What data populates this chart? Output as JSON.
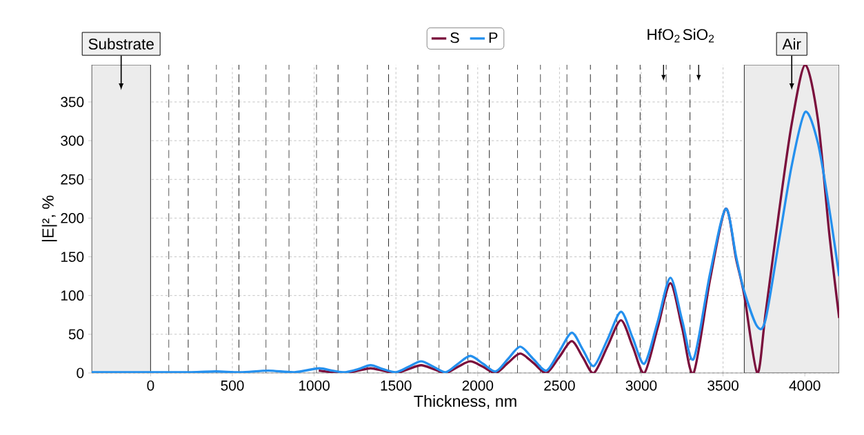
{
  "chart_data": {
    "type": "line",
    "xlabel": "Thickness, nm",
    "ylabel": "|E|², %",
    "x": [
      -360,
      0,
      250,
      400,
      550,
      720,
      880,
      1028,
      1110,
      1190,
      1270,
      1345,
      1420,
      1500,
      1577,
      1654,
      1730,
      1805,
      1880,
      1955,
      2032,
      2110,
      2185,
      2260,
      2340,
      2420,
      2497,
      2575,
      2643,
      2710,
      2793,
      2876,
      2948,
      3019,
      3100,
      3178,
      3250,
      3320,
      3420,
      3516,
      3580,
      3630,
      3709,
      3760,
      3844,
      3920,
      4002,
      4080,
      4150,
      4210
    ],
    "series": [
      {
        "name": "S",
        "color": "#7a0f3c",
        "values": [
          null,
          null,
          null,
          null,
          null,
          null,
          null,
          3,
          1,
          0,
          3,
          6,
          3,
          0,
          5,
          10,
          5,
          0,
          8,
          15,
          8,
          0,
          13,
          25,
          13,
          0,
          20,
          41,
          20,
          0,
          34,
          68,
          34,
          0,
          58,
          116,
          58,
          0,
          120,
          212,
          147,
          100,
          0,
          77,
          211,
          322,
          398,
          327,
          179,
          71
        ]
      },
      {
        "name": "P",
        "color": "#2490ee",
        "values": [
          1,
          1,
          1,
          2,
          1,
          3,
          1,
          6,
          3,
          1,
          5,
          10,
          5,
          1,
          8,
          15,
          8,
          1,
          12,
          22,
          12,
          2,
          18,
          34,
          18,
          3,
          27,
          52,
          30,
          9,
          43,
          79,
          45,
          12,
          66,
          123,
          68,
          18,
          128,
          212,
          150,
          105,
          60,
          69,
          173,
          268,
          337,
          297,
          211,
          125
        ]
      }
    ],
    "xlim": [
      -360,
      4210
    ],
    "ylim": [
      0,
      398
    ],
    "xticks": [
      0,
      500,
      1000,
      1500,
      2000,
      2500,
      3000,
      3500,
      4000
    ],
    "yticks": [
      0,
      50,
      100,
      150,
      200,
      250,
      300,
      350
    ],
    "grid": true,
    "legend": "top",
    "line_style": "solid",
    "marker": "none",
    "bands": [
      {
        "axis": "x",
        "from": -360,
        "to": 0,
        "label": "Substrate",
        "color": "#ececec"
      },
      {
        "axis": "x",
        "from": 3630,
        "to": 4210,
        "label": "Air",
        "color": "#ececec"
      }
    ],
    "ref_lines": [
      {
        "axis": "x",
        "value": 111,
        "color": "#000000",
        "line_style": "dashed"
      },
      {
        "axis": "x",
        "value": 230,
        "color": "#000000",
        "line_style": "dashed"
      },
      {
        "axis": "x",
        "value": 403,
        "color": "#000000",
        "line_style": "dashed"
      },
      {
        "axis": "x",
        "value": 540,
        "color": "#000000",
        "line_style": "dashed"
      },
      {
        "axis": "x",
        "value": 706,
        "color": "#000000",
        "line_style": "dashed"
      },
      {
        "axis": "x",
        "value": 846,
        "color": "#000000",
        "line_style": "dashed"
      },
      {
        "axis": "x",
        "value": 1014,
        "color": "#000000",
        "line_style": "dashed"
      },
      {
        "axis": "x",
        "value": 1146,
        "color": "#000000",
        "line_style": "dashed"
      },
      {
        "axis": "x",
        "value": 1326,
        "color": "#000000",
        "line_style": "dashed"
      },
      {
        "axis": "x",
        "value": 1455,
        "color": "#000000",
        "line_style": "dashed"
      },
      {
        "axis": "x",
        "value": 1634,
        "color": "#000000",
        "line_style": "dashed"
      },
      {
        "axis": "x",
        "value": 1764,
        "color": "#000000",
        "line_style": "dashed"
      },
      {
        "axis": "x",
        "value": 1940,
        "color": "#000000",
        "line_style": "dashed"
      },
      {
        "axis": "x",
        "value": 2071,
        "color": "#000000",
        "line_style": "dashed"
      },
      {
        "axis": "x",
        "value": 2244,
        "color": "#000000",
        "line_style": "dashed"
      },
      {
        "axis": "x",
        "value": 2384,
        "color": "#000000",
        "line_style": "dashed"
      },
      {
        "axis": "x",
        "value": 2545,
        "color": "#000000",
        "line_style": "dashed"
      },
      {
        "axis": "x",
        "value": 2689,
        "color": "#000000",
        "line_style": "dashed"
      },
      {
        "axis": "x",
        "value": 2851,
        "color": "#000000",
        "line_style": "dashed"
      },
      {
        "axis": "x",
        "value": 2993,
        "color": "#000000",
        "line_style": "dashed"
      },
      {
        "axis": "x",
        "value": 3152,
        "color": "#000000",
        "line_style": "dashed"
      },
      {
        "axis": "x",
        "value": 3298,
        "color": "#000000",
        "line_style": "dashed"
      }
    ],
    "annotations": [
      "HfO$_{2}$",
      "SiO$_{2}$"
    ]
  }
}
